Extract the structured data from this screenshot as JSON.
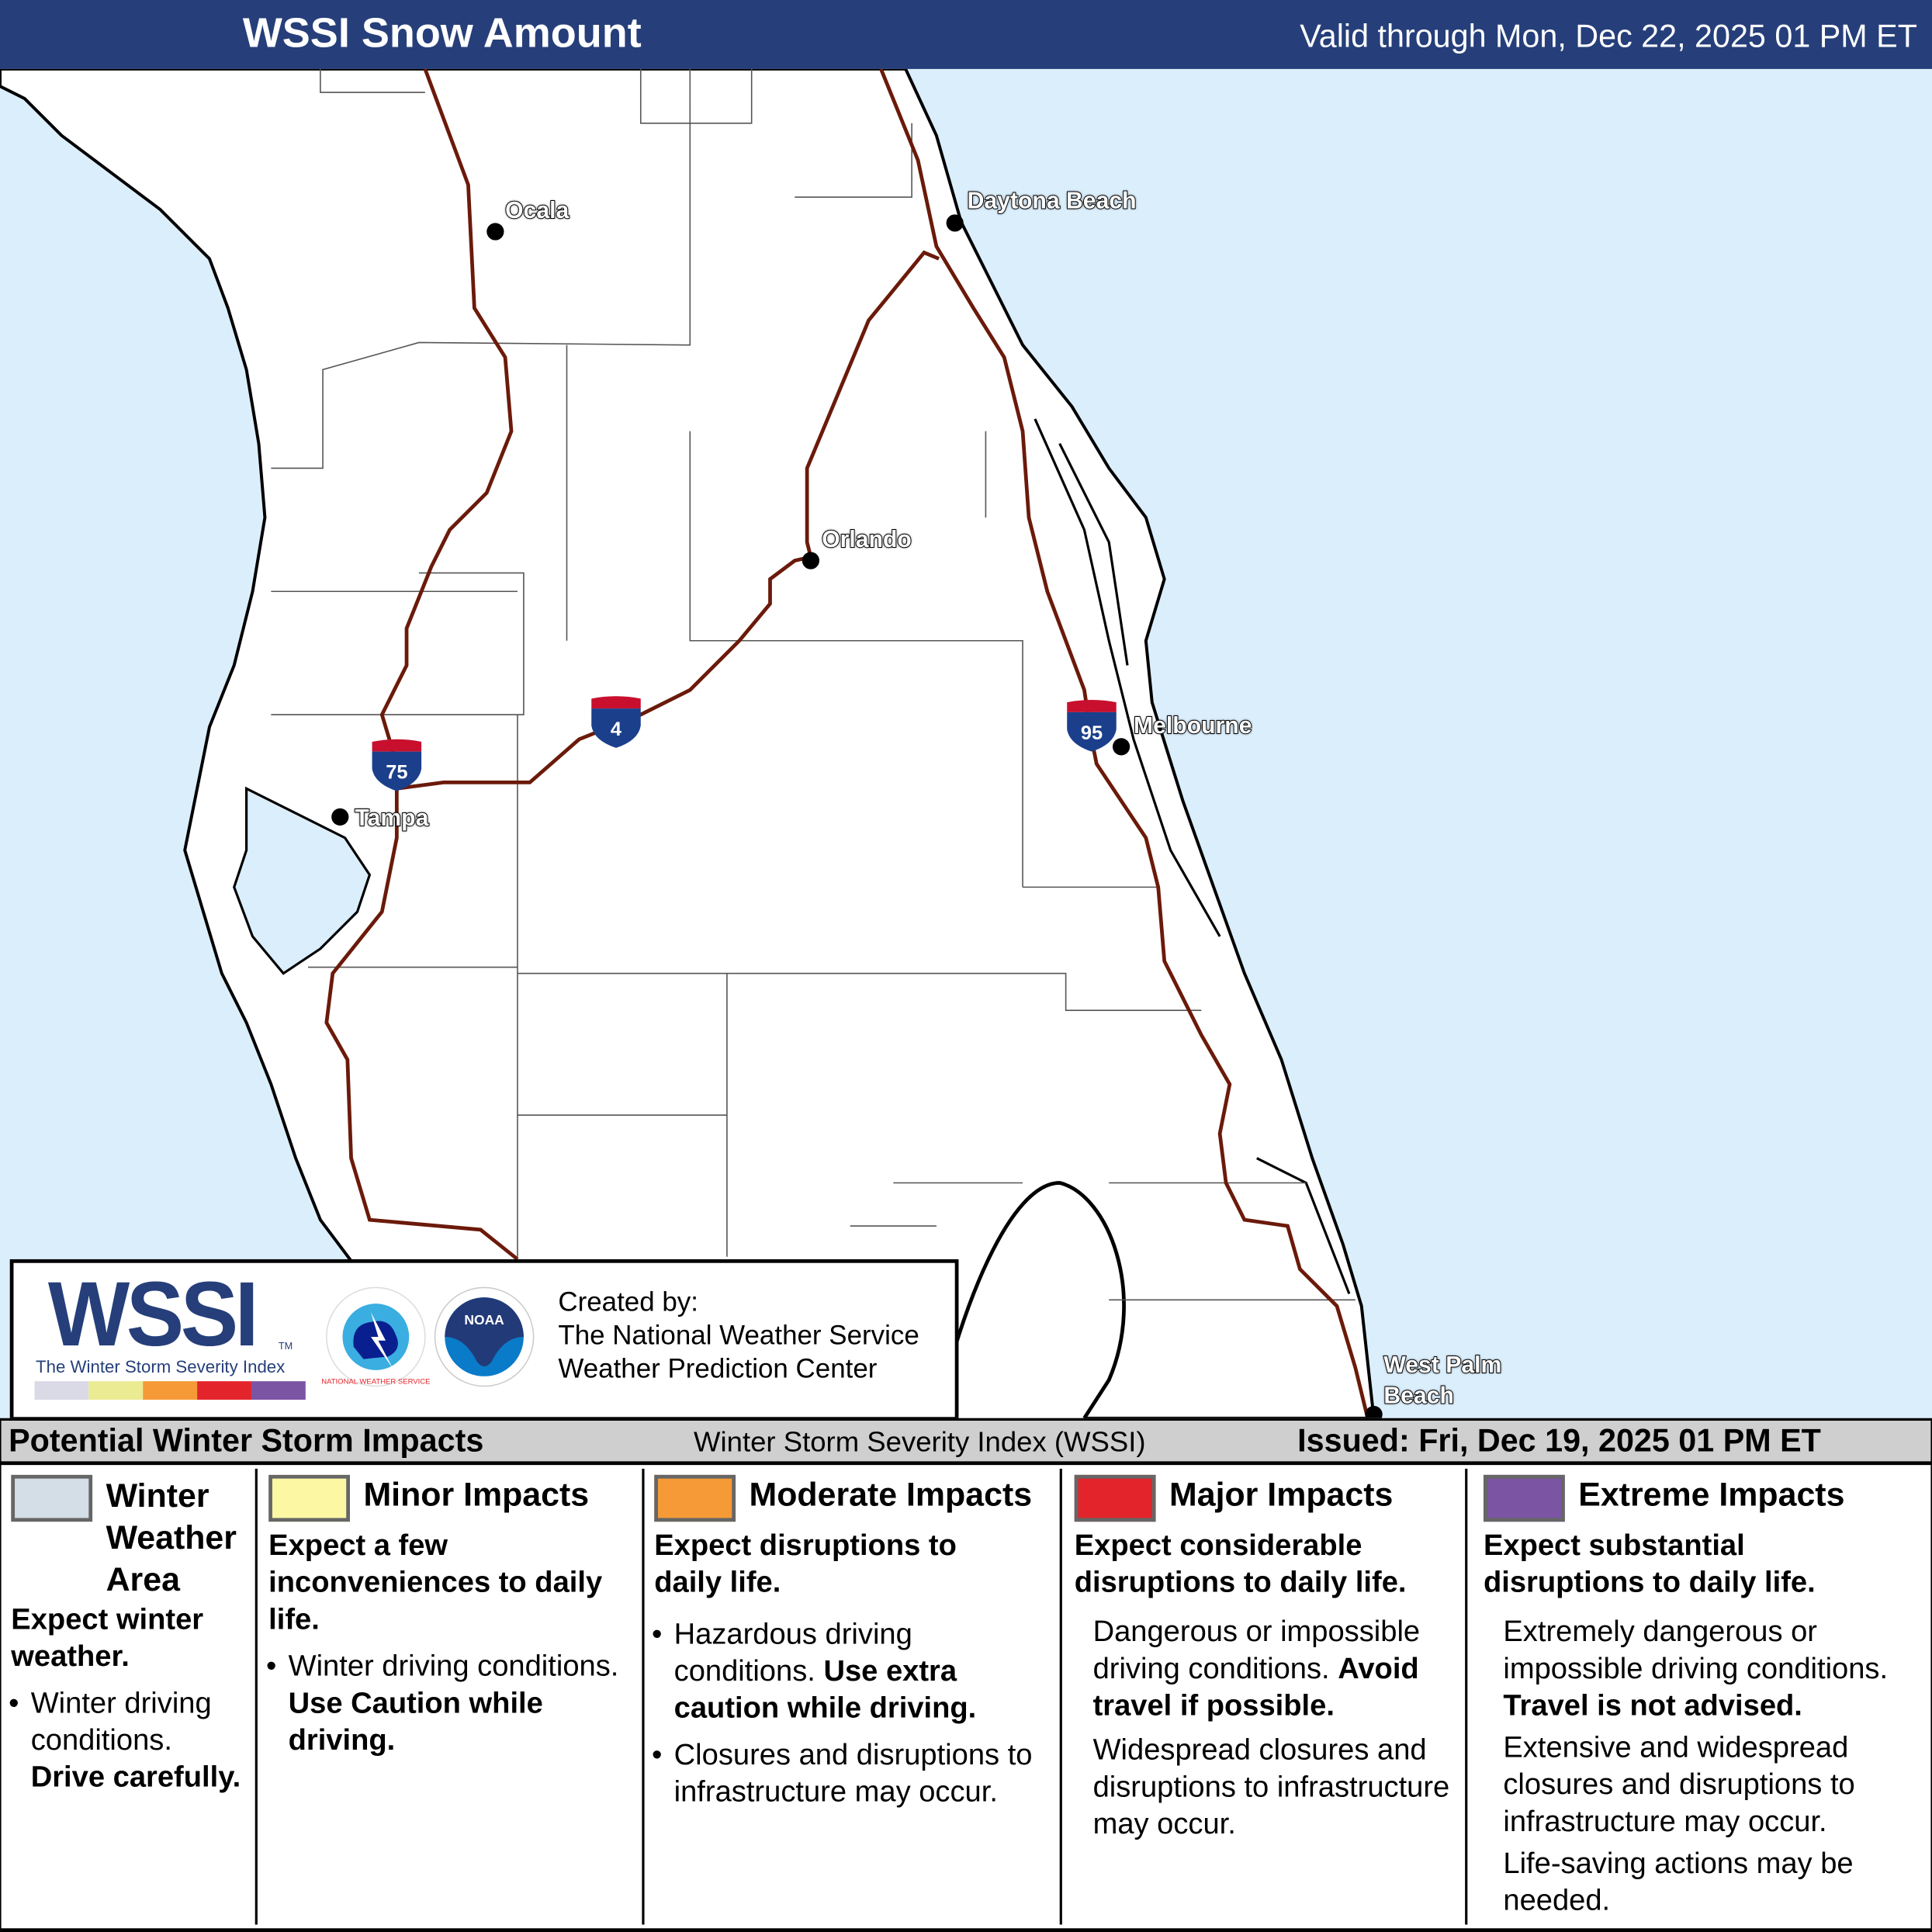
{
  "header": {
    "title": "WSSI Snow Amount",
    "valid": "Valid through Mon, Dec 22, 2025 01 PM ET",
    "bg_color": "#263f7a"
  },
  "map": {
    "water_color": "#dbeefc",
    "land_color": "#ffffff",
    "interstate_color": "#6b1a0a",
    "cities": [
      {
        "name": "Ocala"
      },
      {
        "name": "Daytona Beach"
      },
      {
        "name": "Orlando"
      },
      {
        "name": "Melbourne"
      },
      {
        "name": "Tampa"
      },
      {
        "name": "West Palm",
        "name2": "Beach"
      }
    ],
    "shields": [
      {
        "number": "75"
      },
      {
        "number": "4"
      },
      {
        "number": "95"
      }
    ]
  },
  "logo": {
    "wssi": "WSSI",
    "tm": "TM",
    "subtitle": "The Winter Storm Severity Index",
    "nws_text": "NATIONAL WEATHER SERVICE",
    "noaa_text": "NOAA",
    "scale_colors": [
      "#dad9e6",
      "#ebeb94",
      "#f59a37",
      "#e3242b",
      "#7b54a3"
    ],
    "created_by": "Created by:",
    "org1": "The National Weather Service",
    "org2": "Weather Prediction Center"
  },
  "band": {
    "left": "Potential Winter Storm Impacts",
    "center": "Winter Storm Severity Index (WSSI)",
    "issued": "Issued: Fri, Dec 19, 2025 01 PM ET"
  },
  "legend": [
    {
      "title": "Winter Weather Area",
      "color": "#d3dee6",
      "headline": "Expect winter weather.",
      "bullet": "Winter driving conditions.",
      "bullet_bold": "Drive carefully."
    },
    {
      "title": "Minor Impacts",
      "color": "#fbf7a3",
      "headline": "Expect a few inconveniences to daily life.",
      "bullet": "Winter driving conditions.",
      "bullet_bold": "Use Caution while driving."
    },
    {
      "title": "Moderate Impacts",
      "color": "#f59a37",
      "headline": "Expect disruptions to daily life.",
      "bullet": "Hazardous driving conditions.",
      "bullet_bold": "Use extra caution while driving.",
      "bullet2": "Closures and disruptions to infrastructure may occur."
    },
    {
      "title": "Major Impacts",
      "color": "#e3242b",
      "headline": "Expect considerable disruptions to daily life.",
      "text1": "Dangerous or impossible driving conditions.",
      "text1_bold": "Avoid travel if possible.",
      "text2": "Widespread closures and disruptions to infrastructure may occur."
    },
    {
      "title": "Extreme Impacts",
      "color": "#7b54a3",
      "headline": "Expect substantial disruptions to daily life.",
      "text1": "Extremely dangerous or impossible driving conditions.",
      "text1_bold": "Travel is not advised.",
      "text2": "Extensive and widespread closures and disruptions to infrastructure may occur.",
      "text3": "Life-saving actions may be needed."
    }
  ]
}
